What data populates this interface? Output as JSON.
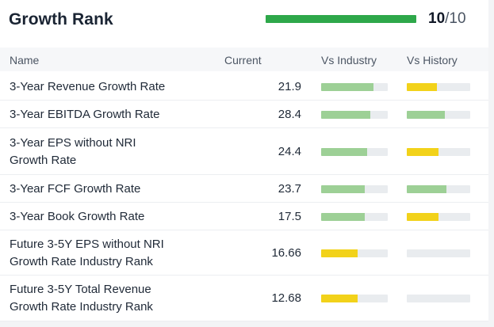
{
  "title": "Growth Rank",
  "rank": {
    "score": "10",
    "max": "/10",
    "fraction": 1.0,
    "color": "#2ea84a"
  },
  "columns": {
    "name": "Name",
    "current": "Current",
    "vs_industry": "Vs Industry",
    "vs_history": "Vs History"
  },
  "colors": {
    "green": "#9dd096",
    "yellow": "#f2d21a",
    "empty": "#e9ecef"
  },
  "rows": [
    {
      "name_lines": [
        "3-Year Revenue Growth Rate"
      ],
      "current": "21.9",
      "vs_industry": {
        "level": 0.79,
        "color": "green"
      },
      "vs_history": {
        "level": 0.48,
        "color": "yellow"
      }
    },
    {
      "name_lines": [
        "3-Year EBITDA Growth Rate"
      ],
      "current": "28.4",
      "vs_industry": {
        "level": 0.74,
        "color": "green"
      },
      "vs_history": {
        "level": 0.6,
        "color": "green"
      }
    },
    {
      "name_lines": [
        "3-Year EPS without NRI",
        "Growth Rate"
      ],
      "current": "24.4",
      "vs_industry": {
        "level": 0.69,
        "color": "green"
      },
      "vs_history": {
        "level": 0.5,
        "color": "yellow"
      }
    },
    {
      "name_lines": [
        "3-Year FCF Growth Rate"
      ],
      "current": "23.7",
      "vs_industry": {
        "level": 0.65,
        "color": "green"
      },
      "vs_history": {
        "level": 0.62,
        "color": "green"
      }
    },
    {
      "name_lines": [
        "3-Year Book Growth Rate"
      ],
      "current": "17.5",
      "vs_industry": {
        "level": 0.65,
        "color": "green"
      },
      "vs_history": {
        "level": 0.5,
        "color": "yellow"
      }
    },
    {
      "name_lines": [
        "Future 3-5Y EPS without NRI",
        "Growth Rate Industry Rank"
      ],
      "current": "16.66",
      "vs_industry": {
        "level": 0.55,
        "color": "yellow"
      },
      "vs_history": {
        "level": 0.0,
        "color": "green"
      }
    },
    {
      "name_lines": [
        "Future 3-5Y Total Revenue",
        "Growth Rate Industry Rank"
      ],
      "current": "12.68",
      "vs_industry": {
        "level": 0.55,
        "color": "yellow"
      },
      "vs_history": {
        "level": 0.0,
        "color": "green"
      }
    }
  ]
}
